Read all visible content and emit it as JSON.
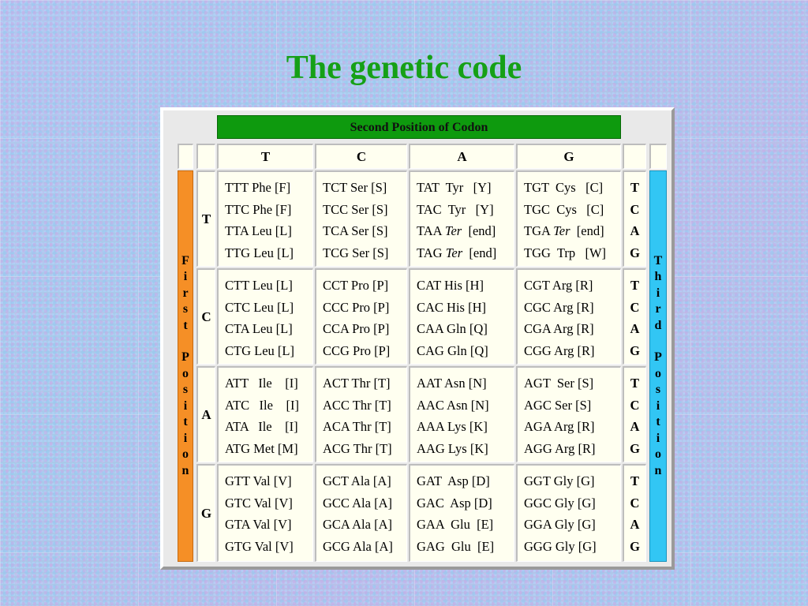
{
  "title": "The genetic code",
  "table": {
    "header": "Second Position of Codon",
    "second_positions": [
      "T",
      "C",
      "A",
      "G"
    ],
    "first_positions": [
      "T",
      "C",
      "A",
      "G"
    ],
    "first_label_letters": [
      "F",
      "i",
      "r",
      "s",
      "t",
      "",
      "P",
      "o",
      "s",
      "i",
      "t",
      "i",
      "o",
      "n"
    ],
    "third_label_letters": [
      "T",
      "h",
      "i",
      "r",
      "d",
      "",
      "P",
      "o",
      "s",
      "i",
      "t",
      "i",
      "o",
      "n"
    ],
    "third_letters": [
      "T",
      "C",
      "A",
      "G"
    ],
    "rows": [
      [
        [
          "TTT Phe [F]",
          "TTC Phe [F]",
          "TTA Leu [L]",
          "TTG Leu [L]"
        ],
        [
          "TCT Ser [S]",
          "TCC Ser [S]",
          "TCA Ser [S]",
          "TCG Ser [S]"
        ],
        [
          "TAT  Tyr   [Y]",
          "TAC  Tyr   [Y]",
          "TAA Ter  [end]",
          "TAG Ter  [end]"
        ],
        [
          "TGT  Cys   [C]",
          "TGC  Cys   [C]",
          "TGA Ter  [end]",
          "TGG  Trp   [W]"
        ]
      ],
      [
        [
          "CTT Leu [L]",
          "CTC Leu [L]",
          "CTA Leu [L]",
          "CTG Leu [L]"
        ],
        [
          "CCT Pro [P]",
          "CCC Pro [P]",
          "CCA Pro [P]",
          "CCG Pro [P]"
        ],
        [
          "CAT His [H]",
          "CAC His [H]",
          "CAA Gln [Q]",
          "CAG Gln [Q]"
        ],
        [
          "CGT Arg [R]",
          "CGC Arg [R]",
          "CGA Arg [R]",
          "CGG Arg [R]"
        ]
      ],
      [
        [
          "ATT   Ile    [I]",
          "ATC   Ile    [I]",
          "ATA   Ile    [I]",
          "ATG Met [M]"
        ],
        [
          "ACT Thr [T]",
          "ACC Thr [T]",
          "ACA Thr [T]",
          "ACG Thr [T]"
        ],
        [
          "AAT Asn [N]",
          "AAC Asn [N]",
          "AAA Lys [K]",
          "AAG Lys [K]"
        ],
        [
          "AGT  Ser [S]",
          "AGC Ser [S]",
          "AGA Arg [R]",
          "AGG Arg [R]"
        ]
      ],
      [
        [
          "GTT Val [V]",
          "GTC Val [V]",
          "GTA Val [V]",
          "GTG Val [V]"
        ],
        [
          "GCT Ala [A]",
          "GCC Ala [A]",
          "GCA Ala [A]",
          "GCG Ala [A]"
        ],
        [
          "GAT  Asp [D]",
          "GAC  Asp [D]",
          "GAA  Glu  [E]",
          "GAG  Glu  [E]"
        ],
        [
          "GGT Gly [G]",
          "GGC Gly [G]",
          "GGA Gly [G]",
          "GGG Gly [G]"
        ]
      ]
    ]
  },
  "colors": {
    "title": "#16a016",
    "header_bar": "#0e9a0e",
    "first_bar": "#f58f26",
    "third_bar": "#32c6f4",
    "cell_bg": "#fffff0"
  }
}
